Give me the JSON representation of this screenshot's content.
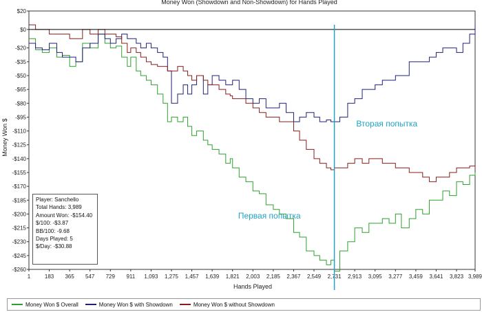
{
  "chart_data": {
    "type": "line",
    "title": "Money Won (Showdown and Non-Showdown) for Hands Played",
    "xlabel": "Hands Played",
    "ylabel": "Money Won $",
    "xlim": [
      1,
      3989
    ],
    "ylim": [
      -260,
      20
    ],
    "x_ticks": [
      1,
      183,
      365,
      547,
      729,
      911,
      1093,
      1275,
      1457,
      1639,
      1821,
      2003,
      2185,
      2367,
      2549,
      2731,
      2913,
      3095,
      3277,
      3459,
      3641,
      3823,
      3989
    ],
    "y_ticks": [
      20,
      0,
      -20,
      -35,
      -50,
      -65,
      -80,
      -95,
      -110,
      -125,
      -140,
      -155,
      -170,
      -185,
      -200,
      -215,
      -230,
      -245,
      -260
    ],
    "vertical_marker_x": 2731,
    "annotations": [
      {
        "text": "Вторая попытка",
        "x": 3200,
        "y": -105
      },
      {
        "text": "Первая попытка",
        "x": 2150,
        "y": -205
      }
    ],
    "series": [
      {
        "name": "Money Won $ Overall",
        "color": "#2ca02c",
        "x": [
          1,
          60,
          120,
          183,
          250,
          300,
          365,
          420,
          480,
          547,
          620,
          680,
          729,
          780,
          830,
          880,
          911,
          960,
          1000,
          1050,
          1093,
          1150,
          1200,
          1240,
          1275,
          1330,
          1380,
          1420,
          1457,
          1500,
          1560,
          1600,
          1639,
          1700,
          1760,
          1800,
          1821,
          1880,
          1940,
          2003,
          2060,
          2120,
          2185,
          2240,
          2300,
          2367,
          2420,
          2480,
          2549,
          2600,
          2660,
          2700,
          2731,
          2780,
          2850,
          2913,
          2980,
          3040,
          3095,
          3160,
          3220,
          3277,
          3330,
          3400,
          3459,
          3520,
          3580,
          3641,
          3700,
          3760,
          3823,
          3880,
          3940,
          3989
        ],
        "y": [
          -10,
          -22,
          -25,
          -20,
          -30,
          -28,
          -40,
          -35,
          -15,
          -20,
          -5,
          -15,
          -20,
          -18,
          -30,
          -40,
          -30,
          -45,
          -50,
          -55,
          -60,
          -70,
          -80,
          -100,
          -95,
          -100,
          -95,
          -105,
          -115,
          -110,
          -120,
          -125,
          -130,
          -135,
          -145,
          -140,
          -150,
          -160,
          -165,
          -175,
          -178,
          -190,
          -195,
          -200,
          -205,
          -220,
          -225,
          -240,
          -245,
          -250,
          -255,
          -250,
          -262,
          -240,
          -230,
          -215,
          -220,
          -210,
          -210,
          -205,
          -210,
          -200,
          -215,
          -205,
          -195,
          -200,
          -185,
          -185,
          -175,
          -180,
          -165,
          -168,
          -158,
          -155
        ]
      },
      {
        "name": "Money Won $ with Showdown",
        "color": "#1f1f7a",
        "x": [
          1,
          60,
          120,
          183,
          250,
          300,
          365,
          420,
          480,
          547,
          620,
          680,
          729,
          780,
          830,
          880,
          911,
          960,
          1000,
          1050,
          1093,
          1150,
          1200,
          1240,
          1275,
          1330,
          1380,
          1420,
          1457,
          1500,
          1560,
          1600,
          1639,
          1700,
          1760,
          1800,
          1821,
          1880,
          1940,
          2003,
          2060,
          2120,
          2185,
          2240,
          2300,
          2367,
          2420,
          2480,
          2549,
          2600,
          2660,
          2700,
          2731,
          2780,
          2850,
          2913,
          2980,
          3040,
          3095,
          3160,
          3220,
          3277,
          3330,
          3400,
          3459,
          3520,
          3580,
          3641,
          3700,
          3760,
          3823,
          3880,
          3940,
          3989
        ],
        "y": [
          -15,
          -20,
          -22,
          -15,
          -25,
          -30,
          -30,
          -35,
          -20,
          -15,
          -5,
          -10,
          -15,
          -10,
          -5,
          -10,
          -10,
          -15,
          -20,
          -15,
          -20,
          -25,
          -30,
          -45,
          -80,
          -70,
          -60,
          -70,
          -60,
          -50,
          -70,
          -60,
          -50,
          -55,
          -60,
          -60,
          -55,
          -65,
          -75,
          -80,
          -75,
          -85,
          -85,
          -80,
          -90,
          -100,
          -95,
          -90,
          -95,
          -100,
          -98,
          -100,
          -100,
          -95,
          -80,
          -75,
          -65,
          -65,
          -60,
          -55,
          -55,
          -50,
          -50,
          -35,
          -35,
          -35,
          -30,
          -25,
          -20,
          -20,
          -25,
          -15,
          -5,
          5
        ]
      },
      {
        "name": "Money Won $ without Showdown",
        "color": "#8b1a1a",
        "x": [
          1,
          60,
          120,
          183,
          250,
          300,
          365,
          420,
          480,
          547,
          620,
          680,
          729,
          780,
          830,
          880,
          911,
          960,
          1000,
          1050,
          1093,
          1150,
          1200,
          1240,
          1275,
          1330,
          1380,
          1420,
          1457,
          1500,
          1560,
          1600,
          1639,
          1700,
          1760,
          1800,
          1821,
          1880,
          1940,
          2003,
          2060,
          2120,
          2185,
          2240,
          2300,
          2367,
          2420,
          2480,
          2549,
          2600,
          2660,
          2700,
          2731,
          2780,
          2850,
          2913,
          2980,
          3040,
          3095,
          3160,
          3220,
          3277,
          3330,
          3400,
          3459,
          3520,
          3580,
          3641,
          3700,
          3760,
          3823,
          3880,
          3940,
          3989
        ],
        "y": [
          5,
          0,
          0,
          -5,
          -5,
          -5,
          -10,
          -10,
          0,
          -5,
          0,
          -5,
          -5,
          -8,
          -15,
          -25,
          -20,
          -25,
          -30,
          -35,
          -38,
          -40,
          -40,
          -45,
          -45,
          -40,
          -45,
          -50,
          -55,
          -50,
          -55,
          -60,
          -60,
          -65,
          -70,
          -72,
          -75,
          -75,
          -80,
          -85,
          -90,
          -95,
          -95,
          -100,
          -100,
          -110,
          -120,
          -130,
          -140,
          -145,
          -150,
          -152,
          -150,
          -150,
          -145,
          -140,
          -145,
          -140,
          -140,
          -145,
          -145,
          -150,
          -150,
          -155,
          -155,
          -160,
          -165,
          -160,
          -160,
          -155,
          -150,
          -150,
          -148,
          -150
        ]
      }
    ],
    "stats": {
      "player": "Player: Sanchello",
      "total_hands": "Total Hands: 3,989",
      "amount_won": "Amount Won: -$154.40",
      "per100": "$/100: -$3.87",
      "bb100": "BB/100: -9.68",
      "days": "Days Played: 5",
      "per_day": "$/Day: -$30.88"
    },
    "legend_position": "bottom",
    "grid": false
  }
}
